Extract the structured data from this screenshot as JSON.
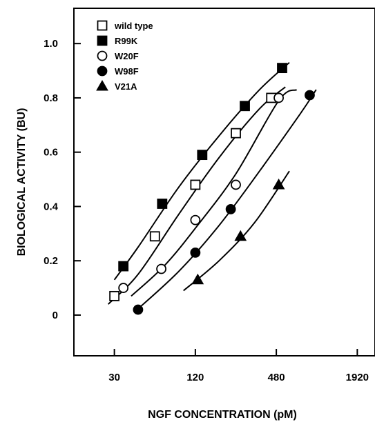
{
  "chart_data": {
    "type": "scatter",
    "xlabel": "NGF CONCENTRATION (pM)",
    "ylabel": "BIOLOGICAL ACTIVITY (BU)",
    "xscale": "log2",
    "xlim": [
      15,
      2600
    ],
    "ylim": [
      -0.15,
      1.13
    ],
    "xticks": [
      30,
      120,
      480,
      1920
    ],
    "xtick_labels": [
      "30",
      "120",
      "480",
      "1920"
    ],
    "yticks": [
      0,
      0.2,
      0.4,
      0.6,
      0.8,
      1.0
    ],
    "ytick_labels": [
      "0",
      "0.2",
      "0.4",
      "0.6",
      "0.8",
      "1.0"
    ],
    "grid": false,
    "legend_position": "top-left",
    "series": [
      {
        "name": "wild type",
        "marker": "square-open",
        "points": [
          [
            30,
            0.07
          ],
          [
            60,
            0.29
          ],
          [
            120,
            0.48
          ],
          [
            240,
            0.67
          ],
          [
            440,
            0.8
          ]
        ],
        "fit_line": [
          [
            27,
            0.04
          ],
          [
            45,
            0.15
          ],
          [
            90,
            0.37
          ],
          [
            180,
            0.58
          ],
          [
            360,
            0.76
          ],
          [
            560,
            0.84
          ]
        ]
      },
      {
        "name": "R99K",
        "marker": "square-filled",
        "points": [
          [
            35,
            0.18
          ],
          [
            68,
            0.41
          ],
          [
            135,
            0.59
          ],
          [
            280,
            0.77
          ],
          [
            530,
            0.91
          ]
        ],
        "fit_line": [
          [
            30,
            0.13
          ],
          [
            45,
            0.25
          ],
          [
            90,
            0.47
          ],
          [
            180,
            0.66
          ],
          [
            360,
            0.83
          ],
          [
            600,
            0.93
          ]
        ]
      },
      {
        "name": "W20F",
        "marker": "circle-open",
        "points": [
          [
            35,
            0.1
          ],
          [
            67,
            0.17
          ],
          [
            120,
            0.35
          ],
          [
            240,
            0.48
          ],
          [
            500,
            0.8
          ]
        ],
        "fit_line": [
          [
            40,
            0.07
          ],
          [
            70,
            0.18
          ],
          [
            120,
            0.32
          ],
          [
            240,
            0.52
          ],
          [
            500,
            0.79
          ],
          [
            680,
            0.83
          ]
        ]
      },
      {
        "name": "W98F",
        "marker": "circle-filled",
        "points": [
          [
            45,
            0.02
          ],
          [
            120,
            0.23
          ],
          [
            220,
            0.39
          ],
          [
            850,
            0.81
          ]
        ],
        "fit_line": [
          [
            42,
            0.01
          ],
          [
            90,
            0.16
          ],
          [
            180,
            0.33
          ],
          [
            360,
            0.53
          ],
          [
            720,
            0.74
          ],
          [
            950,
            0.83
          ]
        ]
      },
      {
        "name": "V21A",
        "marker": "triangle-filled",
        "points": [
          [
            125,
            0.13
          ],
          [
            260,
            0.29
          ],
          [
            500,
            0.48
          ]
        ],
        "fit_line": [
          [
            98,
            0.09
          ],
          [
            180,
            0.2
          ],
          [
            330,
            0.34
          ],
          [
            600,
            0.53
          ]
        ]
      }
    ]
  }
}
